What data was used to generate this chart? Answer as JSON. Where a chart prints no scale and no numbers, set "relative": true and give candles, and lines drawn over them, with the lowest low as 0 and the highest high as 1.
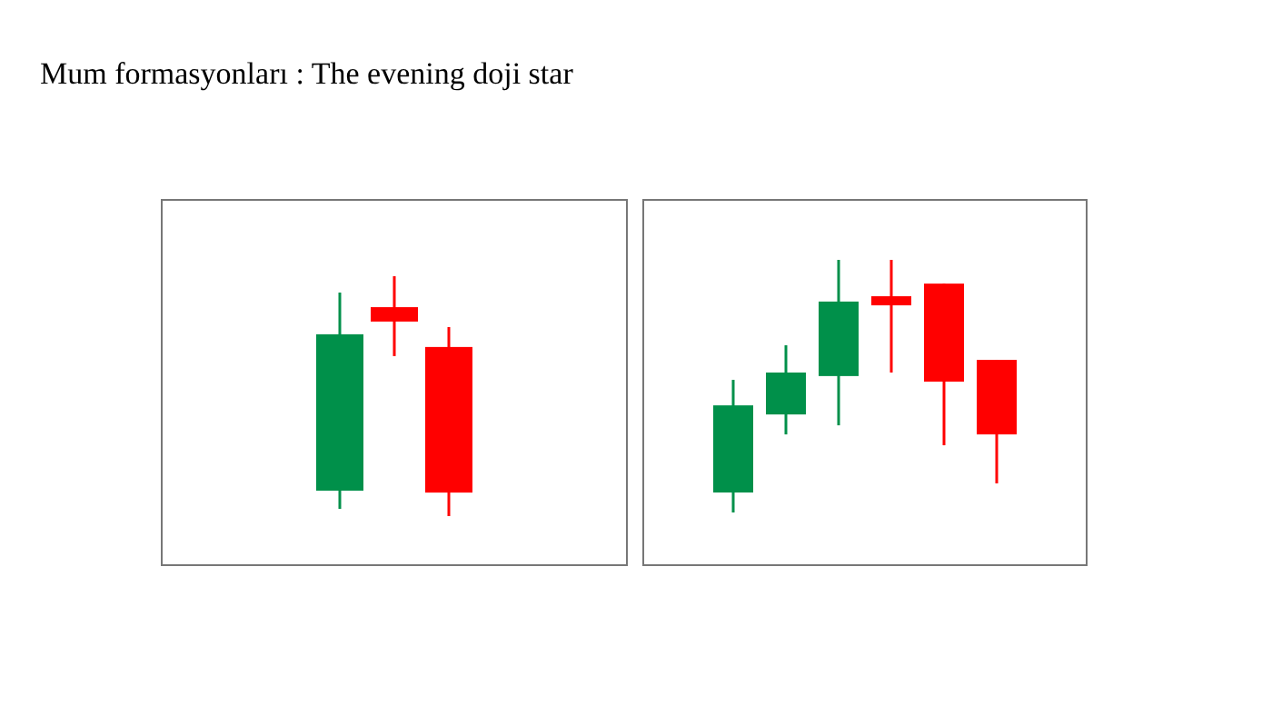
{
  "chart_data": [
    {
      "type": "candlestick",
      "title": "Mum formasyonları : The evening doji star",
      "relative": true,
      "categories": [
        null,
        null,
        null
      ],
      "ohlc": [
        [
          0.106,
          0.932,
          0.03,
          0.758
        ],
        [
          0.871,
          1,
          0.667,
          0.811
        ],
        [
          0.705,
          0.788,
          0,
          0.098
        ]
      ],
      "colors": [
        "#00904a",
        "#ff0000",
        "#ff0000"
      ]
    },
    {
      "type": "candlestick",
      "relative": true,
      "categories": [
        null,
        null,
        null,
        null,
        null,
        null
      ],
      "ohlc": [
        [
          0.079,
          0.525,
          0,
          0.424
        ],
        [
          0.388,
          0.662,
          0.309,
          0.554
        ],
        [
          0.54,
          1,
          0.345,
          0.835
        ],
        [
          0.856,
          1,
          0.554,
          0.82
        ],
        [
          0.906,
          0.906,
          0.266,
          0.518
        ],
        [
          0.604,
          0.604,
          0.115,
          0.309
        ]
      ],
      "colors": [
        "#00904a",
        "#00904a",
        "#00904a",
        "#ff0000",
        "#ff0000",
        "#ff0000"
      ]
    }
  ]
}
